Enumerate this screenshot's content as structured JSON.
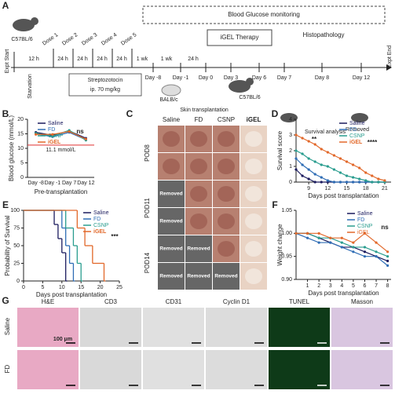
{
  "panel_labels": [
    "A",
    "B",
    "C",
    "D",
    "E",
    "F",
    "G"
  ],
  "panel_a": {
    "strain_start": "C57BL/6",
    "start": "Expt Start",
    "end": "Expt End",
    "starvation": "Starvation",
    "doses": [
      "Dose 1",
      "Dose 2",
      "Dose 3",
      "Dose 4",
      "Dose 5"
    ],
    "intervals": [
      "12 h",
      "24 h",
      "24 h",
      "24 h",
      "24 h",
      "1 wk",
      "1 wk",
      "24 h"
    ],
    "days": [
      "Day -8",
      "Day -1",
      "Day 0",
      "Day 3",
      "Day 6",
      "Day 7",
      "Day 8",
      "Day 12"
    ],
    "drug": "Streptozotocin",
    "dose_route": "ip. 70 mg/kg",
    "monitoring": "Blood Glucose monitoring",
    "therapy": "iGEL Therapy",
    "histo": "Histopathology",
    "donor": "BALB/c",
    "recipient": "C57BL/6",
    "transplant": "Skin transplantation",
    "survival": "Survival analysis",
    "removed": "Removed"
  },
  "panel_c": {
    "columns": [
      "Saline",
      "FD",
      "CSNP",
      "iGEL"
    ],
    "row_groups": [
      "POD8",
      "POD11",
      "POD14"
    ],
    "cells": [
      [
        null,
        null,
        null,
        null
      ],
      [
        null,
        null,
        null,
        null
      ],
      [
        "Removed",
        null,
        null,
        null
      ],
      [
        "Removed",
        null,
        null,
        null
      ],
      [
        "Removed",
        "Removed",
        null,
        null
      ],
      [
        "Removed",
        "Removed",
        "Removed",
        null
      ]
    ]
  },
  "panel_g": {
    "columns": [
      "H&E",
      "CD3",
      "CD31",
      "Cyclin D1",
      "TUNEL",
      "Masson"
    ],
    "rows": [
      "Saline",
      "FD"
    ],
    "scale": "100 μm"
  },
  "chart_data": [
    {
      "type": "line",
      "ylabel": "Blood glucose (mmol/L)",
      "xlabel": "Pre-transplantation",
      "categories": [
        "Day -8",
        "Day -1",
        "Day 7",
        "Day 12"
      ],
      "ylim": [
        0,
        20
      ],
      "yticks": [
        0,
        5,
        10,
        15,
        20
      ],
      "ref_line": {
        "value": 11.1,
        "label": "11.1 mmol/L",
        "color": "#e03030"
      },
      "annotations": [
        "ns"
      ],
      "series": [
        {
          "name": "Saline",
          "color": "#1b1b5e",
          "values": [
            15.5,
            14.5,
            16,
            13.5
          ]
        },
        {
          "name": "FD",
          "color": "#2f6db5",
          "values": [
            15,
            14,
            15.5,
            13
          ]
        },
        {
          "name": "CSNP",
          "color": "#2a9d8f",
          "values": [
            15.2,
            14.2,
            16.2,
            12.8
          ]
        },
        {
          "name": "iGEL",
          "color": "#e2682a",
          "values": [
            14.8,
            14.8,
            15.8,
            13.2
          ]
        }
      ]
    },
    {
      "type": "line",
      "ylabel": "Survival score",
      "xlabel": "Days post transplantation",
      "x": [
        7,
        8,
        9,
        10,
        11,
        12,
        13,
        14,
        15,
        16,
        17,
        18,
        19,
        20,
        21
      ],
      "xlim": [
        7,
        22
      ],
      "xticks": [
        9,
        12,
        15,
        18,
        21
      ],
      "ylim": [
        0,
        4
      ],
      "yticks": [
        0,
        1,
        2,
        3,
        4
      ],
      "annotations": [
        "**",
        "****"
      ],
      "series": [
        {
          "name": "Saline",
          "color": "#1b1b5e",
          "values": [
            0.8,
            0.4,
            0.2,
            0,
            0,
            0,
            0,
            0,
            0,
            0,
            0,
            0,
            0,
            0,
            0
          ]
        },
        {
          "name": "FD",
          "color": "#2f6db5",
          "values": [
            1.5,
            1.1,
            0.8,
            0.5,
            0.3,
            0.1,
            0,
            0,
            0,
            0,
            0,
            0,
            0,
            0,
            0
          ]
        },
        {
          "name": "CSNP",
          "color": "#2a9d8f",
          "values": [
            2,
            1.8,
            1.5,
            1.3,
            1.1,
            1,
            0.8,
            0.6,
            0.4,
            0.3,
            0.2,
            0.1,
            0,
            0,
            0
          ]
        },
        {
          "name": "iGEL",
          "color": "#e2682a",
          "values": [
            3,
            2.8,
            2.6,
            2.4,
            2.1,
            1.9,
            1.7,
            1.5,
            1.3,
            1.1,
            0.9,
            0.6,
            0.4,
            0.2,
            0.1
          ]
        }
      ]
    },
    {
      "type": "step",
      "ylabel": "Probability of Survival",
      "xlabel": "Days post transplantation",
      "xlim": [
        0,
        25
      ],
      "xticks": [
        0,
        5,
        10,
        15,
        20,
        25
      ],
      "ylim": [
        0,
        100
      ],
      "yticks": [
        0,
        25,
        50,
        75,
        100
      ],
      "annotations": [
        "***"
      ],
      "series": [
        {
          "name": "Saline",
          "color": "#1b1b5e",
          "x": [
            0,
            8,
            9,
            10,
            11
          ],
          "values": [
            100,
            80,
            60,
            40,
            0
          ]
        },
        {
          "name": "FD",
          "color": "#2f6db5",
          "x": [
            0,
            10,
            11,
            12,
            13
          ],
          "values": [
            100,
            75,
            50,
            25,
            0
          ]
        },
        {
          "name": "CSNP",
          "color": "#2a9d8f",
          "x": [
            0,
            11,
            13,
            14,
            15
          ],
          "values": [
            100,
            75,
            50,
            25,
            0
          ]
        },
        {
          "name": "iGEL",
          "color": "#e2682a",
          "x": [
            0,
            14,
            16,
            18,
            21
          ],
          "values": [
            100,
            75,
            50,
            25,
            0
          ]
        }
      ]
    },
    {
      "type": "line",
      "ylabel": "Weight change",
      "xlabel": "Days post transplantation",
      "x": [
        0,
        1,
        2,
        3,
        4,
        5,
        6,
        7,
        8
      ],
      "xlim": [
        0,
        8.3
      ],
      "xticks": [
        1,
        2,
        3,
        4,
        5,
        6,
        7,
        8
      ],
      "ylim": [
        0.9,
        1.05
      ],
      "yticks": [
        {
          "value": 0.9,
          "label": "0.90"
        },
        0.95,
        {
          "value": 1,
          "label": "1.00"
        },
        1.05
      ],
      "annotations": [
        "ns"
      ],
      "series": [
        {
          "name": "Saline",
          "color": "#1b1b5e",
          "values": [
            1,
            1,
            0.99,
            0.98,
            0.97,
            0.97,
            0.96,
            0.95,
            0.94
          ]
        },
        {
          "name": "FD",
          "color": "#2f6db5",
          "values": [
            1,
            0.99,
            0.98,
            0.98,
            0.97,
            0.96,
            0.95,
            0.95,
            0.93
          ]
        },
        {
          "name": "CSNP",
          "color": "#2a9d8f",
          "values": [
            1,
            1,
            0.99,
            0.99,
            0.98,
            0.97,
            0.97,
            0.96,
            0.95
          ]
        },
        {
          "name": "iGEL",
          "color": "#e2682a",
          "values": [
            1,
            1,
            1,
            0.99,
            0.99,
            0.98,
            1,
            0.98,
            0.96
          ]
        }
      ]
    }
  ]
}
